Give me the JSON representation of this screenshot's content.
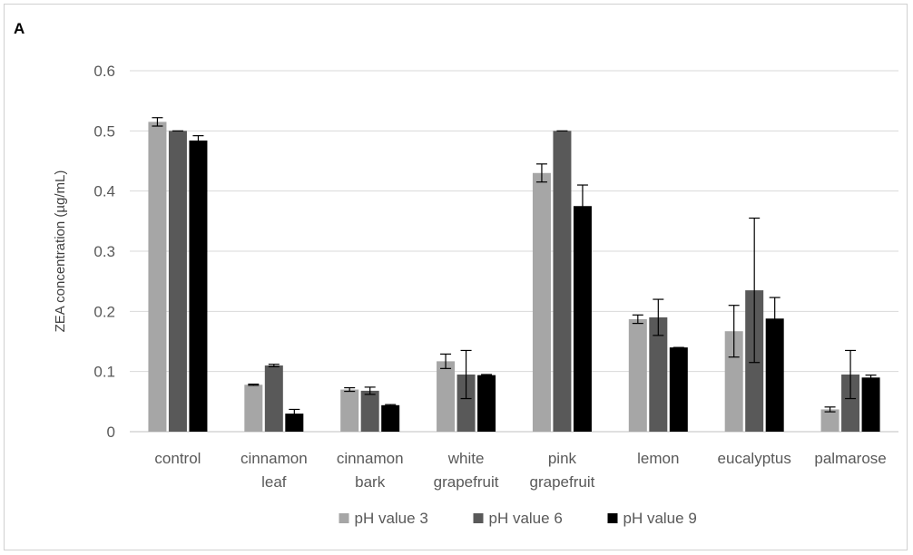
{
  "chart_data": {
    "type": "bar",
    "panel_label": "A",
    "title": "",
    "xlabel": "",
    "ylabel": "ZEA concentration (µg/mL)",
    "ylim": [
      0,
      0.6
    ],
    "yticks": [
      "0",
      "0.1",
      "0.2",
      "0.3",
      "0.4",
      "0.5",
      "0.6"
    ],
    "grid": true,
    "legend_position": "bottom",
    "categories": [
      [
        "control"
      ],
      [
        "cinnamon",
        "leaf"
      ],
      [
        "cinnamon",
        "bark"
      ],
      [
        "white",
        "grapefruit"
      ],
      [
        "pink",
        "grapefruit"
      ],
      [
        "lemon"
      ],
      [
        "eucalyptus"
      ],
      [
        "palmarose"
      ]
    ],
    "series": [
      {
        "name": "pH value 3",
        "color": "#a6a6a6",
        "values": [
          0.515,
          0.078,
          0.07,
          0.117,
          0.43,
          0.187,
          0.167,
          0.037
        ],
        "errors": [
          0.007,
          0.001,
          0.003,
          0.012,
          0.015,
          0.007,
          0.043,
          0.004
        ]
      },
      {
        "name": "pH value 6",
        "color": "#595959",
        "values": [
          0.5,
          0.11,
          0.068,
          0.095,
          0.5,
          0.19,
          0.235,
          0.095
        ],
        "errors": [
          0.0,
          0.002,
          0.006,
          0.04,
          0.0,
          0.03,
          0.12,
          0.04
        ]
      },
      {
        "name": "pH value 9",
        "color": "#000000",
        "values": [
          0.484,
          0.03,
          0.044,
          0.094,
          0.375,
          0.14,
          0.188,
          0.09
        ],
        "errors": [
          0.008,
          0.007,
          0.001,
          0.001,
          0.035,
          0.0,
          0.035,
          0.004
        ]
      }
    ]
  }
}
